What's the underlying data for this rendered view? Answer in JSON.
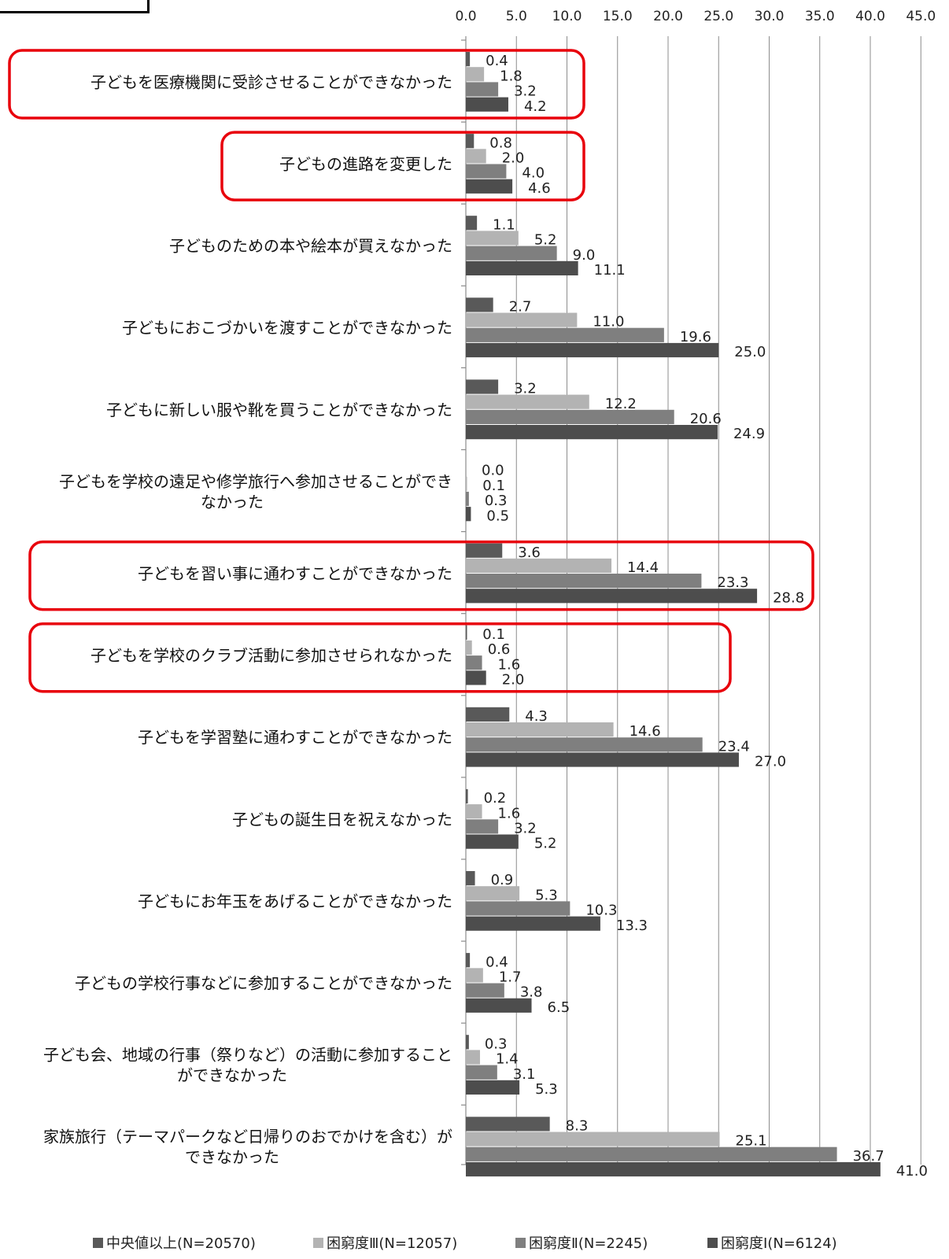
{
  "chart_data": {
    "type": "bar",
    "orientation": "horizontal",
    "xlim": [
      0,
      45
    ],
    "x_ticks": [
      "0.0",
      "5.0",
      "10.0",
      "15.0",
      "20.0",
      "25.0",
      "30.0",
      "35.0",
      "40.0",
      "45.0"
    ],
    "grid": "vertical",
    "legend_position": "bottom",
    "categories": [
      "子どもを医療機関に受診させることができなかった",
      "子どもの進路を変更した",
      "子どものための本や絵本が買えなかった",
      "子どもにおこづかいを渡すことができなかった",
      "子どもに新しい服や靴を買うことができなかった",
      "子どもを学校の遠足や修学旅行へ参加させることができ|なかった",
      "子どもを習い事に通わすことができなかった",
      "子どもを学校のクラブ活動に参加させられなかった",
      "子どもを学習塾に通わすことができなかった",
      "子どもの誕生日を祝えなかった",
      "子どもにお年玉をあげることができなかった",
      "子どもの学校行事などに参加することができなかった",
      "子ども会、地域の行事（祭りなど）の活動に参加すること|ができなかった",
      "家族旅行（テーマパークなど日帰りのおでかけを含む）が|できなかった"
    ],
    "series": [
      {
        "name": "中央値以上(N=20570)",
        "color": "#595959",
        "values": [
          0.4,
          0.8,
          1.1,
          2.7,
          3.2,
          0.0,
          3.6,
          0.1,
          4.3,
          0.2,
          0.9,
          0.4,
          0.3,
          8.3
        ]
      },
      {
        "name": "困窮度Ⅲ(N=12057)",
        "color": "#b3b3b3",
        "values": [
          1.8,
          2.0,
          5.2,
          11.0,
          12.2,
          0.1,
          14.4,
          0.6,
          14.6,
          1.6,
          5.3,
          1.7,
          1.4,
          25.1
        ]
      },
      {
        "name": "困窮度Ⅱ(N=2245)",
        "color": "#7f7f7f",
        "values": [
          3.2,
          4.0,
          9.0,
          19.6,
          20.6,
          0.3,
          23.3,
          1.6,
          23.4,
          3.2,
          10.3,
          3.8,
          3.1,
          36.7
        ]
      },
      {
        "name": "困窮度Ⅰ(N=6124)",
        "color": "#4d4d4d",
        "values": [
          4.2,
          4.6,
          11.1,
          25.0,
          24.9,
          0.5,
          28.8,
          2.0,
          27.0,
          5.2,
          13.3,
          6.5,
          5.3,
          41.0
        ]
      }
    ],
    "highlighted_categories": [
      0,
      1,
      6,
      7
    ],
    "highlight_color": "#e8000b"
  }
}
